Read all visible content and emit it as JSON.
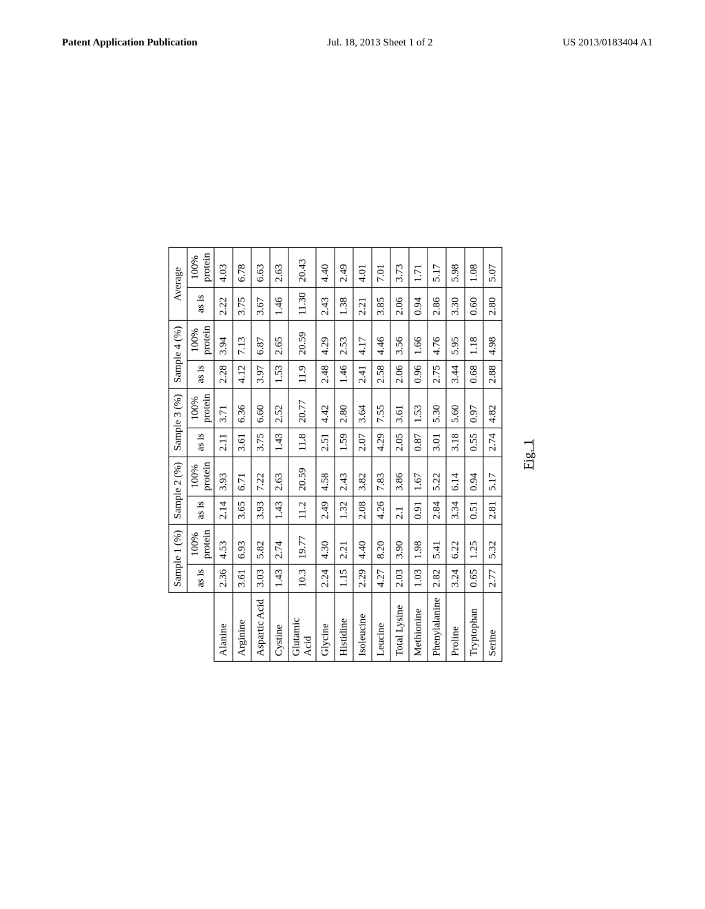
{
  "header": {
    "left": "Patent Application Publication",
    "center": "Jul. 18, 2013  Sheet 1 of 2",
    "right": "US 2013/0183404 A1"
  },
  "caption": "Fig. 1",
  "table": {
    "group_headers": [
      "Sample 1 (%)",
      "Sample 2 (%)",
      "Sample 3 (%)",
      "Sample 4 (%)",
      "Average"
    ],
    "sub_headers": [
      "as is",
      "100% protein",
      "as is",
      "100% protein",
      "as is",
      "100% protein",
      "as is",
      "100% protein",
      "as is",
      "100% protein"
    ],
    "rows": [
      {
        "label": "Alanine",
        "cells": [
          "2.36",
          "4.53",
          "2.14",
          "3.93",
          "2.11",
          "3.71",
          "2.28",
          "3.94",
          "2.22",
          "4.03"
        ]
      },
      {
        "label": "Arginine",
        "cells": [
          "3.61",
          "6.93",
          "3.65",
          "6.71",
          "3.61",
          "6.36",
          "4.12",
          "7.13",
          "3.75",
          "6.78"
        ]
      },
      {
        "label": "Aspartic Acid",
        "cells": [
          "3.03",
          "5.82",
          "3.93",
          "7.22",
          "3.75",
          "6.60",
          "3.97",
          "6.87",
          "3.67",
          "6.63"
        ]
      },
      {
        "label": "Cystine",
        "cells": [
          "1.43",
          "2.74",
          "1.43",
          "2.63",
          "1.43",
          "2.52",
          "1.53",
          "2.65",
          "1.46",
          "2.63"
        ]
      },
      {
        "label": "Glutamic Acid",
        "cells": [
          "10.3",
          "19.77",
          "11.2",
          "20.59",
          "11.8",
          "20.77",
          "11.9",
          "20.59",
          "11.30",
          "20.43"
        ]
      },
      {
        "label": "Glycine",
        "cells": [
          "2.24",
          "4.30",
          "2.49",
          "4.58",
          "2.51",
          "4.42",
          "2.48",
          "4.29",
          "2.43",
          "4.40"
        ]
      },
      {
        "label": "Histidine",
        "cells": [
          "1.15",
          "2.21",
          "1.32",
          "2.43",
          "1.59",
          "2.80",
          "1.46",
          "2.53",
          "1.38",
          "2.49"
        ]
      },
      {
        "label": "Isoleucine",
        "cells": [
          "2.29",
          "4.40",
          "2.08",
          "3.82",
          "2.07",
          "3.64",
          "2.41",
          "4.17",
          "2.21",
          "4.01"
        ]
      },
      {
        "label": "Leucine",
        "cells": [
          "4.27",
          "8.20",
          "4.26",
          "7.83",
          "4.29",
          "7.55",
          "2.58",
          "4.46",
          "3.85",
          "7.01"
        ]
      },
      {
        "label": "Total Lysine",
        "cells": [
          "2.03",
          "3.90",
          "2.1",
          "3.86",
          "2.05",
          "3.61",
          "2.06",
          "3.56",
          "2.06",
          "3.73"
        ]
      },
      {
        "label": "Methionine",
        "cells": [
          "1.03",
          "1.98",
          "0.91",
          "1.67",
          "0.87",
          "1.53",
          "0.96",
          "1.66",
          "0.94",
          "1.71"
        ]
      },
      {
        "label": "Phenylalanine",
        "cells": [
          "2.82",
          "5.41",
          "2.84",
          "5.22",
          "3.01",
          "5.30",
          "2.75",
          "4.76",
          "2.86",
          "5.17"
        ]
      },
      {
        "label": "Proline",
        "cells": [
          "3.24",
          "6.22",
          "3.34",
          "6.14",
          "3.18",
          "5.60",
          "3.44",
          "5.95",
          "3.30",
          "5.98"
        ]
      },
      {
        "label": "Tryptophan",
        "cells": [
          "0.65",
          "1.25",
          "0.51",
          "0.94",
          "0.55",
          "0.97",
          "0.68",
          "1.18",
          "0.60",
          "1.08"
        ]
      },
      {
        "label": "Serine",
        "cells": [
          "2.77",
          "5.32",
          "2.81",
          "5.17",
          "2.74",
          "4.82",
          "2.88",
          "4.98",
          "2.80",
          "5.07"
        ]
      }
    ]
  }
}
